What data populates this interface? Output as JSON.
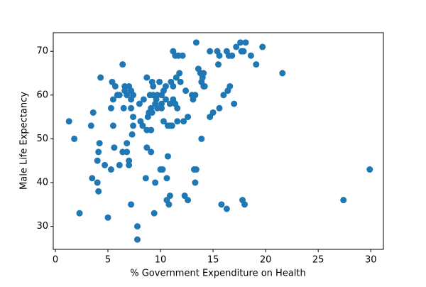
{
  "chart_data": {
    "type": "scatter",
    "xlabel": "% Government Expenditure on Health",
    "ylabel": "Male Life Expectancy",
    "color": "#1f77b4",
    "grid": false,
    "xlim": [
      -0.2,
      31.2
    ],
    "ylim": [
      24.75,
      74.25
    ],
    "xticks": [
      0,
      5,
      10,
      15,
      20,
      25,
      30
    ],
    "yticks": [
      30,
      40,
      50,
      60,
      70
    ],
    "x": [
      1.3,
      1.8,
      2.3,
      3.4,
      3.6,
      3.5,
      4,
      4,
      4.1,
      4.1,
      4.2,
      4.3,
      4.7,
      5,
      5.3,
      5.3,
      5.4,
      5.5,
      5.5,
      5.6,
      5.7,
      5.9,
      6.1,
      6.1,
      6.4,
      6.4,
      6.5,
      6.6,
      6.6,
      6.8,
      6.8,
      6.8,
      7,
      7,
      7,
      7.2,
      7.2,
      7.2,
      7.2,
      7.3,
      7.4,
      7.4,
      7.4,
      7.8,
      7.8,
      8,
      8.1,
      8.3,
      8.4,
      8.6,
      8.7,
      8.7,
      8.7,
      8.8,
      8.9,
      9,
      9.1,
      9.1,
      9.1,
      9.2,
      9.2,
      9.3,
      9.3,
      9.4,
      9.5,
      9.5,
      9.6,
      9.7,
      9.7,
      9.9,
      10,
      10.1,
      10.1,
      10.1,
      10.2,
      10.3,
      10.3,
      10.5,
      10.5,
      10.6,
      10.6,
      10.7,
      10.7,
      10.8,
      10.9,
      10.9,
      10.9,
      11,
      11.1,
      11.2,
      11.2,
      11.2,
      11.4,
      11.4,
      11.5,
      11.6,
      11.6,
      11.7,
      11.8,
      11.9,
      12.1,
      12.2,
      12.3,
      12.4,
      12.6,
      12.6,
      13,
      13.1,
      13.2,
      13.3,
      13.3,
      13.4,
      13.4,
      13.6,
      13.8,
      13.9,
      13.9,
      14,
      14.1,
      14.1,
      14.2,
      14.7,
      14.7,
      15,
      15.4,
      15.6,
      15.5,
      15.6,
      15.8,
      16,
      16.3,
      16.3,
      16.4,
      16.5,
      16.6,
      16.8,
      17,
      17.2,
      17.6,
      17.7,
      17.8,
      17.9,
      18.1,
      18,
      18.6,
      19.1,
      19.7,
      21.6,
      27.4,
      29.9
    ],
    "values": [
      54,
      50,
      33,
      53,
      56,
      41,
      45,
      40,
      38,
      47,
      49,
      64,
      44,
      32,
      43,
      57,
      63,
      59,
      53,
      48,
      62,
      60,
      44,
      60,
      47,
      67,
      57,
      62,
      61,
      47,
      49,
      60,
      44,
      45,
      62,
      59,
      61,
      57,
      35,
      51,
      53,
      60,
      55,
      30,
      27,
      58,
      54,
      53,
      59,
      41,
      52,
      64,
      48,
      55,
      56,
      60,
      47,
      52,
      57,
      63,
      56,
      62,
      60,
      33,
      58,
      40,
      59,
      60,
      57,
      63,
      43,
      58,
      57,
      60,
      43,
      61,
      54,
      62,
      59,
      41,
      36,
      53,
      46,
      35,
      53,
      58,
      37,
      63,
      53,
      70,
      62,
      59,
      58,
      69,
      64,
      54,
      57,
      69,
      65,
      63,
      69,
      54,
      37,
      61,
      55,
      36,
      60,
      59,
      43,
      60,
      40,
      43,
      72,
      66,
      65,
      50,
      63,
      64,
      62,
      65,
      62,
      55,
      70,
      56,
      70,
      57,
      67,
      69,
      35,
      60,
      70,
      34,
      61,
      69,
      62,
      69,
      58,
      71,
      72,
      70,
      36,
      70,
      72,
      35,
      69,
      67,
      71,
      65,
      36,
      43
    ]
  }
}
